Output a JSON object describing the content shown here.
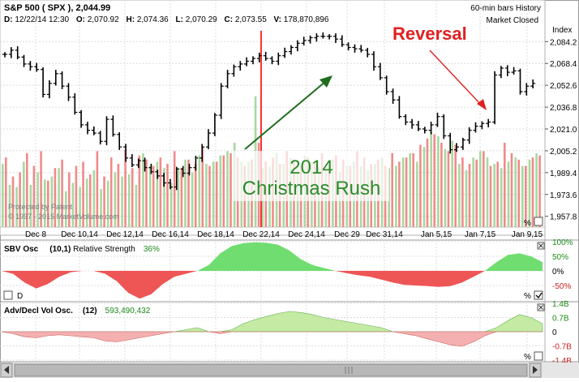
{
  "header": {
    "symbol": "S&P 500",
    "ticker": "( SPX )",
    "last_price": "2,044.99",
    "bar_info": "60-min bars  History",
    "market_status": "Market Closed",
    "index_label": "Index",
    "ohlcv": {
      "date_label": "D:",
      "date": "12/22/14 12:30",
      "open_label": "O:",
      "open": "2,070.92",
      "high_label": "H:",
      "high": "2,074.36",
      "low_label": "L:",
      "low": "2,070.29",
      "close_label": "C:",
      "close": "2,073.55",
      "volume_label": "V:",
      "volume": "178,870,896"
    }
  },
  "annotations": {
    "reversal": "Reversal",
    "rush_line1": "2014",
    "rush_line2": "Christmas Rush",
    "watermark_line1": "Protected by Patent",
    "watermark_line2": "© 1997 - 2015 MarketVolume.com"
  },
  "colors": {
    "up_volume": "#a8d8a0",
    "down_volume": "#f08a8a",
    "cursor_line": "#ff3030",
    "osc_positive": "#70dd70",
    "osc_negative": "#ee5555",
    "vol_positive": "#c4eaa4",
    "vol_negative": "#f4b0b0",
    "reversal_text": "#e02020",
    "rush_text": "#2a8a2a",
    "arrow_green": "#1e6e1e",
    "arrow_red": "#e02020"
  },
  "panels": {
    "sbv": {
      "title": "SBV Osc",
      "params": "(10,1)",
      "label": "Relative Strength",
      "value": "36%",
      "axis_ticks": [
        "100%",
        "50%",
        "0%",
        "-50%"
      ],
      "checkbox_label": "D",
      "pct_label": "%"
    },
    "advdecl": {
      "title": "Adv/Decl Vol Osc.",
      "params": "(12)",
      "value": "593,490,432",
      "axis_ticks": [
        "1.4B",
        "0.7B",
        "0",
        "-0.7B",
        "-1.4B"
      ],
      "pct_label": "%"
    },
    "main_pct_label": "%"
  },
  "chart_data": {
    "type": "ohlc",
    "title": "S&P 500 ( SPX )",
    "bar_interval": "60-min",
    "x_ticks": [
      "Dec 8",
      "Dec 10,14",
      "Dec 12,14",
      "Dec 16,14",
      "Dec 18,14",
      "Dec 22,14",
      "Dec 24,14",
      "Dec 29",
      "Dec 31,14",
      "Jan 5,15",
      "Jan 7,15",
      "Jan 9,15"
    ],
    "y_ticks": [
      "2,084.2",
      "2,068.4",
      "2,052.6",
      "2,036.8",
      "2,021.0",
      "2,005.2",
      "1,989.4",
      "1,973.6",
      "1,957.8"
    ],
    "ylim": [
      1950,
      2092
    ],
    "price_close_series": [
      2075,
      2078,
      2073,
      2068,
      2066,
      2064,
      2046,
      2054,
      2061,
      2052,
      2044,
      2033,
      2024,
      2020,
      2018,
      2012,
      2028,
      2017,
      2008,
      2000,
      1995,
      1998,
      1993,
      1990,
      1987,
      1982,
      1979,
      1992,
      1989,
      1993,
      2000,
      2008,
      2018,
      2031,
      2052,
      2061,
      2066,
      2068,
      2070,
      2072,
      2074,
      2072,
      2070,
      2074,
      2077,
      2080,
      2083,
      2085,
      2087,
      2088,
      2088,
      2088,
      2086,
      2082,
      2080,
      2079,
      2078,
      2075,
      2066,
      2058,
      2048,
      2042,
      2030,
      2026,
      2024,
      2021,
      2020,
      2024,
      2030,
      2016,
      2006,
      2008,
      2013,
      2020,
      2023,
      2025,
      2026,
      2060,
      2065,
      2062,
      2063,
      2048,
      2052,
      2054
    ],
    "volume_series": [
      {
        "name": "Up volume",
        "values": [
          60,
          40,
          38,
          62,
          40,
          52,
          45,
          48,
          56,
          34,
          42,
          38,
          46,
          54,
          36,
          44,
          52,
          48,
          50,
          40,
          70,
          58,
          62,
          56,
          42,
          56,
          64,
          52,
          68,
          60,
          62,
          68,
          72,
          80,
          62,
          62,
          124,
          56,
          58,
          70,
          60,
          66,
          58,
          68,
          62,
          56,
          60,
          64,
          52,
          58,
          62,
          58,
          54,
          60,
          66,
          56,
          58,
          66,
          70,
          62,
          76,
          90,
          86,
          74,
          82,
          60,
          54,
          66,
          72,
          66,
          60,
          56,
          62,
          66,
          58,
          64,
          70
        ]
      },
      {
        "name": "Down volume",
        "values": [
          66,
          48,
          52,
          70,
          58,
          72,
          44,
          56,
          64,
          52,
          58,
          62,
          50,
          72,
          48,
          66,
          60,
          74,
          56,
          68,
          64,
          58,
          66,
          60,
          72,
          56,
          64,
          60,
          76,
          58,
          62,
          68,
          70,
          66,
          58,
          64,
          80,
          62,
          66,
          60,
          72,
          64,
          58,
          66,
          62,
          70,
          60,
          68,
          64,
          58,
          72,
          66,
          60,
          64,
          58,
          70,
          62,
          66,
          70,
          78,
          84,
          88,
          80,
          72,
          78,
          66,
          60,
          64,
          72,
          58,
          62,
          80,
          70,
          64,
          58,
          66,
          68
        ]
      }
    ],
    "sbv_osc_series": [
      0,
      -10,
      -40,
      -60,
      -45,
      -20,
      -5,
      0,
      0,
      -10,
      -35,
      -75,
      -95,
      -80,
      -45,
      -20,
      -10,
      0,
      20,
      60,
      85,
      95,
      98,
      96,
      90,
      70,
      40,
      20,
      10,
      0,
      -8,
      -15,
      -20,
      -30,
      -40,
      -48,
      -50,
      -52,
      -55,
      -52,
      -40,
      -20,
      0,
      30,
      55,
      60,
      50,
      30
    ],
    "adv_decl_series": [
      0.0,
      -0.1,
      -0.25,
      -0.3,
      -0.2,
      -0.15,
      -0.2,
      -0.25,
      -0.3,
      -0.45,
      -0.5,
      -0.4,
      -0.3,
      -0.2,
      -0.1,
      0.0,
      0.1,
      0.2,
      0.0,
      -0.1,
      0.1,
      0.4,
      0.6,
      0.75,
      0.9,
      1.0,
      0.95,
      0.85,
      0.7,
      0.6,
      0.5,
      0.4,
      0.3,
      0.2,
      0.0,
      -0.1,
      -0.2,
      -0.35,
      -0.5,
      -0.65,
      -0.72,
      -0.5,
      -0.2,
      0.2,
      0.55,
      0.85,
      0.7,
      0.4
    ]
  }
}
